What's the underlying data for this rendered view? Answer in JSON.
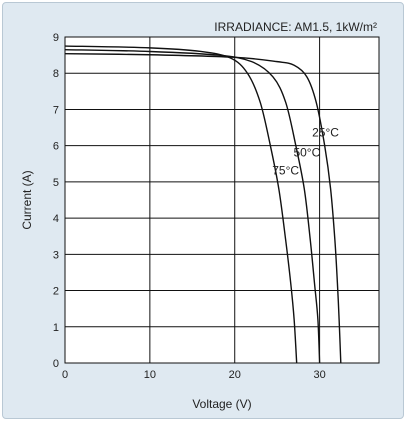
{
  "chart_data": {
    "type": "line",
    "title": "IRRADIANCE: AM1.5, 1kW/m²",
    "xlabel": "Voltage (V)",
    "ylabel": "Current (A)",
    "xlim": [
      0,
      37
    ],
    "ylim": [
      0,
      9
    ],
    "xticks": [
      0,
      10,
      20,
      30
    ],
    "yticks": [
      0,
      1,
      2,
      3,
      4,
      5,
      6,
      7,
      8,
      9
    ],
    "grid": true,
    "colors": {
      "panel": "#dfe9f1",
      "plot": "#ffffff",
      "line": "#111111"
    },
    "series": [
      {
        "name": "25°C",
        "points": [
          [
            0,
            8.54
          ],
          [
            10,
            8.51
          ],
          [
            20,
            8.44
          ],
          [
            25,
            8.32
          ],
          [
            27,
            8.22
          ],
          [
            28.5,
            7.9
          ],
          [
            29.6,
            7.2
          ],
          [
            30.6,
            6.0
          ],
          [
            31.3,
            4.8
          ],
          [
            31.8,
            3.4
          ],
          [
            32.1,
            2.2
          ],
          [
            32.3,
            1.2
          ],
          [
            32.5,
            0
          ]
        ]
      },
      {
        "name": "50°C",
        "points": [
          [
            0,
            8.65
          ],
          [
            10,
            8.6
          ],
          [
            18,
            8.5
          ],
          [
            22,
            8.32
          ],
          [
            24.5,
            7.9
          ],
          [
            26,
            7.2
          ],
          [
            27.2,
            6.0
          ],
          [
            28.2,
            4.8
          ],
          [
            28.9,
            3.4
          ],
          [
            29.4,
            2.2
          ],
          [
            29.8,
            1.2
          ],
          [
            30.0,
            0
          ]
        ]
      },
      {
        "name": "75°C",
        "points": [
          [
            0,
            8.75
          ],
          [
            10,
            8.7
          ],
          [
            16,
            8.6
          ],
          [
            19.5,
            8.42
          ],
          [
            21.5,
            8.0
          ],
          [
            23,
            7.2
          ],
          [
            24.2,
            6.0
          ],
          [
            25.2,
            4.8
          ],
          [
            26.0,
            3.4
          ],
          [
            26.6,
            2.2
          ],
          [
            27.0,
            1.2
          ],
          [
            27.3,
            0
          ]
        ]
      }
    ],
    "annotations": [
      {
        "text": "25°C",
        "x": 30.7,
        "y": 6.25
      },
      {
        "text": "50°C",
        "x": 28.5,
        "y": 5.7
      },
      {
        "text": "75°C",
        "x": 26.0,
        "y": 5.2
      }
    ]
  }
}
